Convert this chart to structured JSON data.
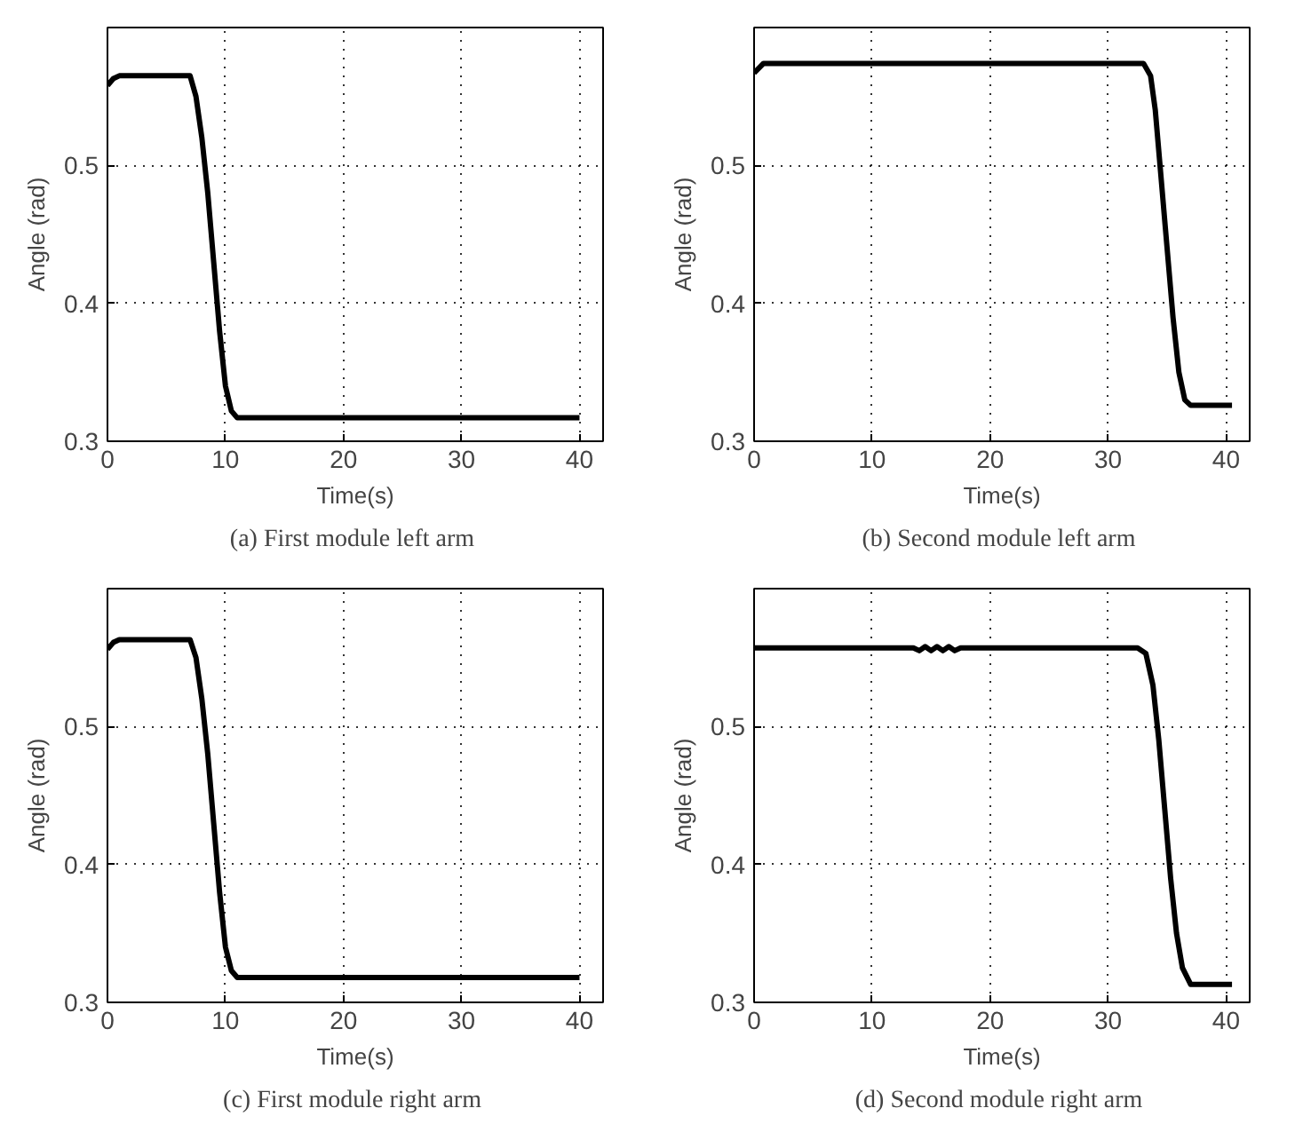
{
  "chart_data": [
    {
      "type": "line",
      "title": "(a)  First module left arm",
      "xlabel": "Time(s)",
      "ylabel": "Angle (rad)",
      "xlim": [
        0,
        42
      ],
      "ylim": [
        0.3,
        0.6
      ],
      "xticks": [
        0,
        10,
        20,
        30,
        40
      ],
      "yticks": [
        0.3,
        0.4,
        0.5
      ],
      "grid": true,
      "series": [
        {
          "color": "#000000",
          "x": [
            0,
            0.5,
            1,
            7,
            7.5,
            8,
            8.5,
            9,
            9.5,
            10,
            10.5,
            11,
            40
          ],
          "values": [
            0.558,
            0.563,
            0.565,
            0.565,
            0.55,
            0.52,
            0.48,
            0.43,
            0.38,
            0.34,
            0.322,
            0.317,
            0.317
          ]
        }
      ]
    },
    {
      "type": "line",
      "title": "(b)  Second module left arm",
      "xlabel": "Time(s)",
      "ylabel": "Angle (rad)",
      "xlim": [
        0,
        42
      ],
      "ylim": [
        0.3,
        0.6
      ],
      "xticks": [
        0,
        10,
        20,
        30,
        40
      ],
      "yticks": [
        0.3,
        0.4,
        0.5
      ],
      "grid": true,
      "series": [
        {
          "color": "#000000",
          "x": [
            0,
            0.8,
            33,
            33.6,
            34,
            34.5,
            35,
            35.5,
            36,
            36.5,
            37,
            40.5
          ],
          "values": [
            0.567,
            0.574,
            0.574,
            0.565,
            0.54,
            0.49,
            0.44,
            0.39,
            0.35,
            0.33,
            0.326,
            0.326
          ]
        }
      ]
    },
    {
      "type": "line",
      "title": "(c)  First module right arm",
      "xlabel": "Time(s)",
      "ylabel": "Angle (rad)",
      "xlim": [
        0,
        42
      ],
      "ylim": [
        0.3,
        0.6
      ],
      "xticks": [
        0,
        10,
        20,
        30,
        40
      ],
      "yticks": [
        0.3,
        0.4,
        0.5
      ],
      "grid": true,
      "series": [
        {
          "color": "#000000",
          "x": [
            0,
            0.5,
            1,
            7,
            7.5,
            8,
            8.5,
            9,
            9.5,
            10,
            10.5,
            11,
            40
          ],
          "values": [
            0.556,
            0.561,
            0.563,
            0.563,
            0.55,
            0.52,
            0.48,
            0.43,
            0.38,
            0.34,
            0.323,
            0.318,
            0.318
          ]
        }
      ]
    },
    {
      "type": "line",
      "title": "(d)  Second module right arm",
      "xlabel": "Time(s)",
      "ylabel": "Angle (rad)",
      "xlim": [
        0,
        42
      ],
      "ylim": [
        0.3,
        0.6
      ],
      "xticks": [
        0,
        10,
        20,
        30,
        40
      ],
      "yticks": [
        0.3,
        0.4,
        0.5
      ],
      "grid": true,
      "series": [
        {
          "color": "#000000",
          "x": [
            0,
            13.5,
            14,
            14.5,
            15,
            15.5,
            16,
            16.5,
            17,
            17.5,
            32.5,
            33.2,
            33.8,
            34.3,
            34.8,
            35.3,
            35.8,
            36.3,
            37,
            40.5
          ],
          "values": [
            0.557,
            0.557,
            0.555,
            0.558,
            0.555,
            0.558,
            0.555,
            0.558,
            0.555,
            0.557,
            0.557,
            0.553,
            0.53,
            0.49,
            0.44,
            0.39,
            0.35,
            0.325,
            0.313,
            0.313
          ]
        }
      ]
    }
  ]
}
